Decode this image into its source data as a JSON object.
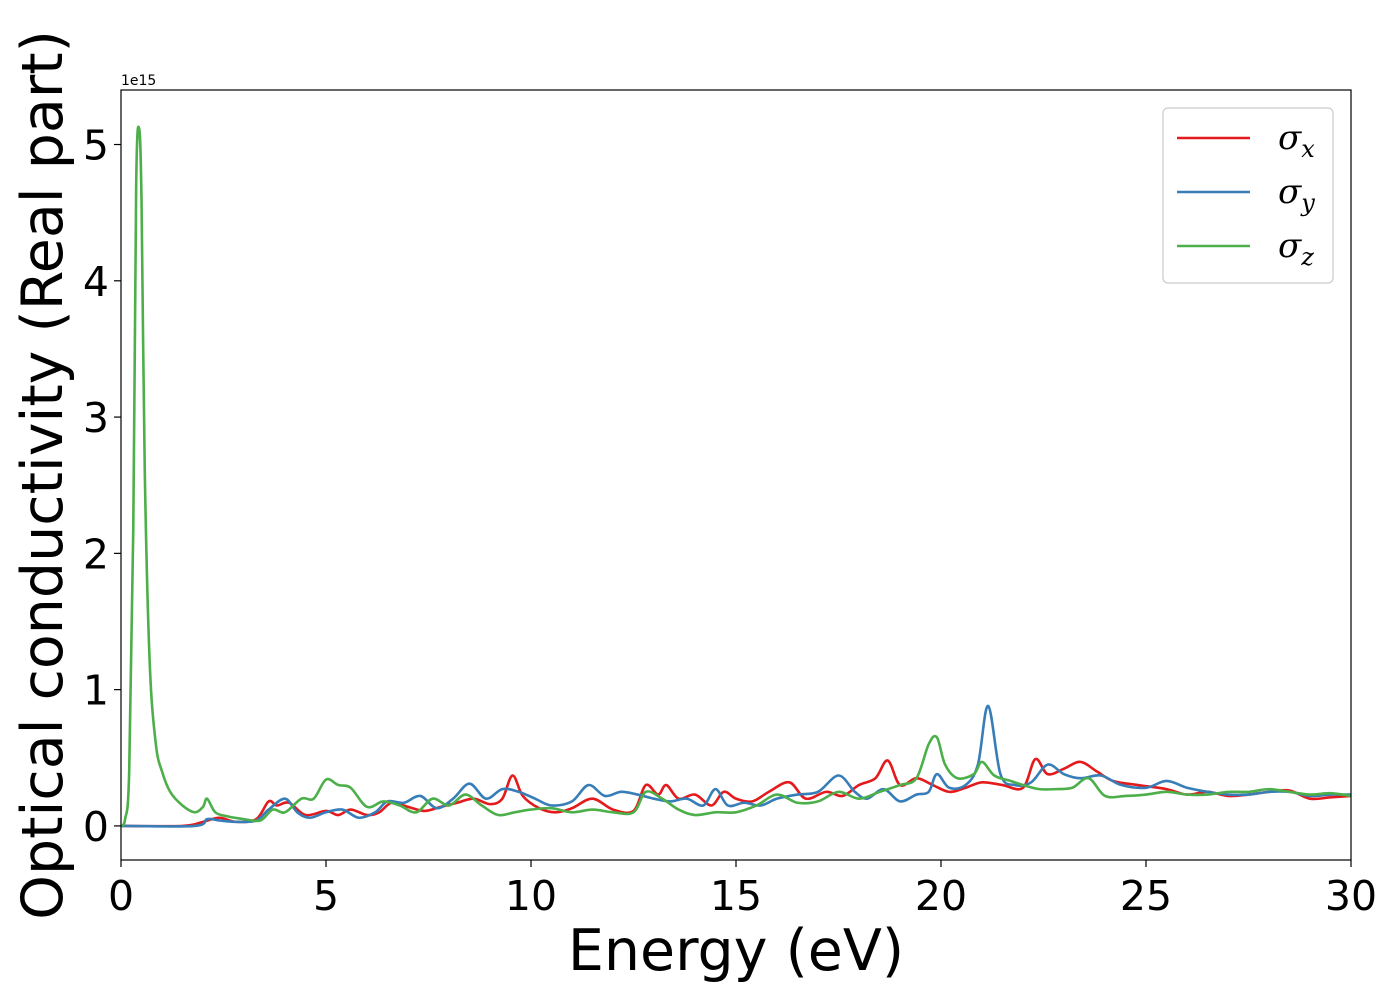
{
  "chart_data": {
    "type": "line",
    "xlabel": "Energy (eV)",
    "ylabel": "Optical conductivity (Real part)",
    "y_offset_label": "1e15",
    "xlim": [
      0,
      30
    ],
    "ylim": [
      -0.25,
      5.4
    ],
    "x_ticks": [
      0,
      5,
      10,
      15,
      20,
      25,
      30
    ],
    "x_tick_labels": [
      "0",
      "5",
      "10",
      "15",
      "20",
      "25",
      "30"
    ],
    "y_ticks": [
      0,
      1,
      2,
      3,
      4,
      5
    ],
    "y_tick_labels": [
      "0",
      "1",
      "2",
      "3",
      "4",
      "5"
    ],
    "grid": false,
    "legend_position": "top-right",
    "series": [
      {
        "name": "σx",
        "symbol": "σ",
        "subscript": "x",
        "color": "#e41a1c",
        "points": [
          [
            0,
            0
          ],
          [
            1.5,
            0
          ],
          [
            2,
            0.03
          ],
          [
            2.4,
            0.06
          ],
          [
            2.8,
            0.03
          ],
          [
            3.3,
            0.05
          ],
          [
            3.6,
            0.18
          ],
          [
            3.8,
            0.15
          ],
          [
            4.1,
            0.17
          ],
          [
            4.5,
            0.08
          ],
          [
            5,
            0.11
          ],
          [
            5.3,
            0.08
          ],
          [
            5.6,
            0.12
          ],
          [
            6,
            0.08
          ],
          [
            6.3,
            0.1
          ],
          [
            6.6,
            0.17
          ],
          [
            7,
            0.14
          ],
          [
            7.4,
            0.11
          ],
          [
            7.8,
            0.14
          ],
          [
            8.2,
            0.17
          ],
          [
            8.6,
            0.2
          ],
          [
            9,
            0.16
          ],
          [
            9.3,
            0.2
          ],
          [
            9.55,
            0.37
          ],
          [
            9.8,
            0.22
          ],
          [
            10.2,
            0.13
          ],
          [
            10.6,
            0.1
          ],
          [
            11,
            0.13
          ],
          [
            11.5,
            0.2
          ],
          [
            12,
            0.12
          ],
          [
            12.5,
            0.11
          ],
          [
            12.8,
            0.3
          ],
          [
            13.1,
            0.23
          ],
          [
            13.3,
            0.3
          ],
          [
            13.6,
            0.2
          ],
          [
            14,
            0.23
          ],
          [
            14.4,
            0.15
          ],
          [
            14.7,
            0.25
          ],
          [
            15,
            0.2
          ],
          [
            15.4,
            0.18
          ],
          [
            15.8,
            0.25
          ],
          [
            16.3,
            0.32
          ],
          [
            16.7,
            0.2
          ],
          [
            17.2,
            0.25
          ],
          [
            17.6,
            0.22
          ],
          [
            18,
            0.3
          ],
          [
            18.4,
            0.35
          ],
          [
            18.7,
            0.48
          ],
          [
            19,
            0.3
          ],
          [
            19.4,
            0.35
          ],
          [
            19.8,
            0.3
          ],
          [
            20.2,
            0.25
          ],
          [
            20.6,
            0.28
          ],
          [
            21,
            0.32
          ],
          [
            21.5,
            0.3
          ],
          [
            22,
            0.28
          ],
          [
            22.3,
            0.49
          ],
          [
            22.6,
            0.38
          ],
          [
            23,
            0.42
          ],
          [
            23.4,
            0.47
          ],
          [
            23.8,
            0.4
          ],
          [
            24.2,
            0.33
          ],
          [
            24.8,
            0.3
          ],
          [
            25.5,
            0.27
          ],
          [
            26,
            0.23
          ],
          [
            26.5,
            0.25
          ],
          [
            27,
            0.22
          ],
          [
            27.5,
            0.23
          ],
          [
            28,
            0.25
          ],
          [
            28.5,
            0.26
          ],
          [
            29,
            0.2
          ],
          [
            29.5,
            0.21
          ],
          [
            30,
            0.22
          ]
        ]
      },
      {
        "name": "σy",
        "symbol": "σ",
        "subscript": "y",
        "color": "#377eb8",
        "points": [
          [
            0,
            0
          ],
          [
            1.8,
            0
          ],
          [
            2.1,
            0.05
          ],
          [
            2.4,
            0.04
          ],
          [
            2.8,
            0.03
          ],
          [
            3.3,
            0.04
          ],
          [
            3.6,
            0.12
          ],
          [
            4,
            0.2
          ],
          [
            4.3,
            0.1
          ],
          [
            4.6,
            0.06
          ],
          [
            5,
            0.1
          ],
          [
            5.4,
            0.12
          ],
          [
            5.8,
            0.06
          ],
          [
            6.2,
            0.1
          ],
          [
            6.5,
            0.18
          ],
          [
            6.9,
            0.17
          ],
          [
            7.3,
            0.22
          ],
          [
            7.7,
            0.13
          ],
          [
            8.1,
            0.2
          ],
          [
            8.5,
            0.31
          ],
          [
            8.9,
            0.2
          ],
          [
            9.3,
            0.27
          ],
          [
            9.7,
            0.25
          ],
          [
            10.1,
            0.2
          ],
          [
            10.5,
            0.15
          ],
          [
            11,
            0.18
          ],
          [
            11.4,
            0.3
          ],
          [
            11.8,
            0.22
          ],
          [
            12.2,
            0.25
          ],
          [
            12.6,
            0.23
          ],
          [
            13,
            0.2
          ],
          [
            13.4,
            0.18
          ],
          [
            13.8,
            0.2
          ],
          [
            14.2,
            0.15
          ],
          [
            14.5,
            0.27
          ],
          [
            14.8,
            0.15
          ],
          [
            15.2,
            0.17
          ],
          [
            15.6,
            0.15
          ],
          [
            16,
            0.2
          ],
          [
            16.5,
            0.23
          ],
          [
            17,
            0.25
          ],
          [
            17.5,
            0.37
          ],
          [
            17.9,
            0.25
          ],
          [
            18.2,
            0.2
          ],
          [
            18.6,
            0.27
          ],
          [
            19,
            0.18
          ],
          [
            19.4,
            0.23
          ],
          [
            19.7,
            0.25
          ],
          [
            19.9,
            0.38
          ],
          [
            20.2,
            0.28
          ],
          [
            20.6,
            0.3
          ],
          [
            20.9,
            0.45
          ],
          [
            21.15,
            0.88
          ],
          [
            21.45,
            0.38
          ],
          [
            21.8,
            0.3
          ],
          [
            22.2,
            0.32
          ],
          [
            22.6,
            0.45
          ],
          [
            23,
            0.38
          ],
          [
            23.4,
            0.35
          ],
          [
            23.9,
            0.37
          ],
          [
            24.4,
            0.3
          ],
          [
            25,
            0.28
          ],
          [
            25.5,
            0.33
          ],
          [
            26,
            0.28
          ],
          [
            26.5,
            0.25
          ],
          [
            27,
            0.23
          ],
          [
            27.5,
            0.23
          ],
          [
            28,
            0.25
          ],
          [
            28.5,
            0.25
          ],
          [
            29,
            0.22
          ],
          [
            29.5,
            0.23
          ],
          [
            30,
            0.23
          ]
        ]
      },
      {
        "name": "σz",
        "symbol": "σ",
        "subscript": "z",
        "color": "#4daf4a",
        "points": [
          [
            0,
            0
          ],
          [
            0.1,
            0.05
          ],
          [
            0.2,
            0.4
          ],
          [
            0.3,
            2.2
          ],
          [
            0.37,
            4.7
          ],
          [
            0.44,
            5.12
          ],
          [
            0.5,
            4.6
          ],
          [
            0.58,
            2.6
          ],
          [
            0.7,
            1.2
          ],
          [
            0.85,
            0.6
          ],
          [
            1,
            0.4
          ],
          [
            1.2,
            0.25
          ],
          [
            1.5,
            0.15
          ],
          [
            1.8,
            0.1
          ],
          [
            2,
            0.14
          ],
          [
            2.1,
            0.2
          ],
          [
            2.3,
            0.1
          ],
          [
            2.6,
            0.07
          ],
          [
            3,
            0.05
          ],
          [
            3.4,
            0.04
          ],
          [
            3.7,
            0.12
          ],
          [
            4,
            0.1
          ],
          [
            4.4,
            0.2
          ],
          [
            4.7,
            0.2
          ],
          [
            5,
            0.34
          ],
          [
            5.3,
            0.3
          ],
          [
            5.6,
            0.28
          ],
          [
            6,
            0.14
          ],
          [
            6.4,
            0.18
          ],
          [
            6.8,
            0.15
          ],
          [
            7.2,
            0.1
          ],
          [
            7.6,
            0.2
          ],
          [
            8,
            0.15
          ],
          [
            8.4,
            0.23
          ],
          [
            8.8,
            0.15
          ],
          [
            9.2,
            0.08
          ],
          [
            9.6,
            0.1
          ],
          [
            10,
            0.12
          ],
          [
            10.5,
            0.13
          ],
          [
            11,
            0.1
          ],
          [
            11.5,
            0.12
          ],
          [
            12,
            0.1
          ],
          [
            12.5,
            0.1
          ],
          [
            12.8,
            0.25
          ],
          [
            13.2,
            0.2
          ],
          [
            13.6,
            0.12
          ],
          [
            14,
            0.08
          ],
          [
            14.5,
            0.1
          ],
          [
            15,
            0.1
          ],
          [
            15.5,
            0.15
          ],
          [
            16,
            0.23
          ],
          [
            16.5,
            0.17
          ],
          [
            17,
            0.18
          ],
          [
            17.5,
            0.25
          ],
          [
            18,
            0.2
          ],
          [
            18.5,
            0.25
          ],
          [
            19,
            0.3
          ],
          [
            19.4,
            0.35
          ],
          [
            19.7,
            0.6
          ],
          [
            19.9,
            0.65
          ],
          [
            20.1,
            0.45
          ],
          [
            20.4,
            0.35
          ],
          [
            20.8,
            0.38
          ],
          [
            21,
            0.47
          ],
          [
            21.3,
            0.37
          ],
          [
            21.7,
            0.33
          ],
          [
            22,
            0.3
          ],
          [
            22.4,
            0.27
          ],
          [
            22.8,
            0.27
          ],
          [
            23.2,
            0.28
          ],
          [
            23.6,
            0.35
          ],
          [
            24,
            0.22
          ],
          [
            24.5,
            0.22
          ],
          [
            25,
            0.23
          ],
          [
            25.5,
            0.25
          ],
          [
            26,
            0.23
          ],
          [
            26.5,
            0.23
          ],
          [
            27,
            0.25
          ],
          [
            27.5,
            0.25
          ],
          [
            28,
            0.27
          ],
          [
            28.5,
            0.25
          ],
          [
            29,
            0.23
          ],
          [
            29.5,
            0.24
          ],
          [
            30,
            0.22
          ]
        ]
      }
    ]
  }
}
